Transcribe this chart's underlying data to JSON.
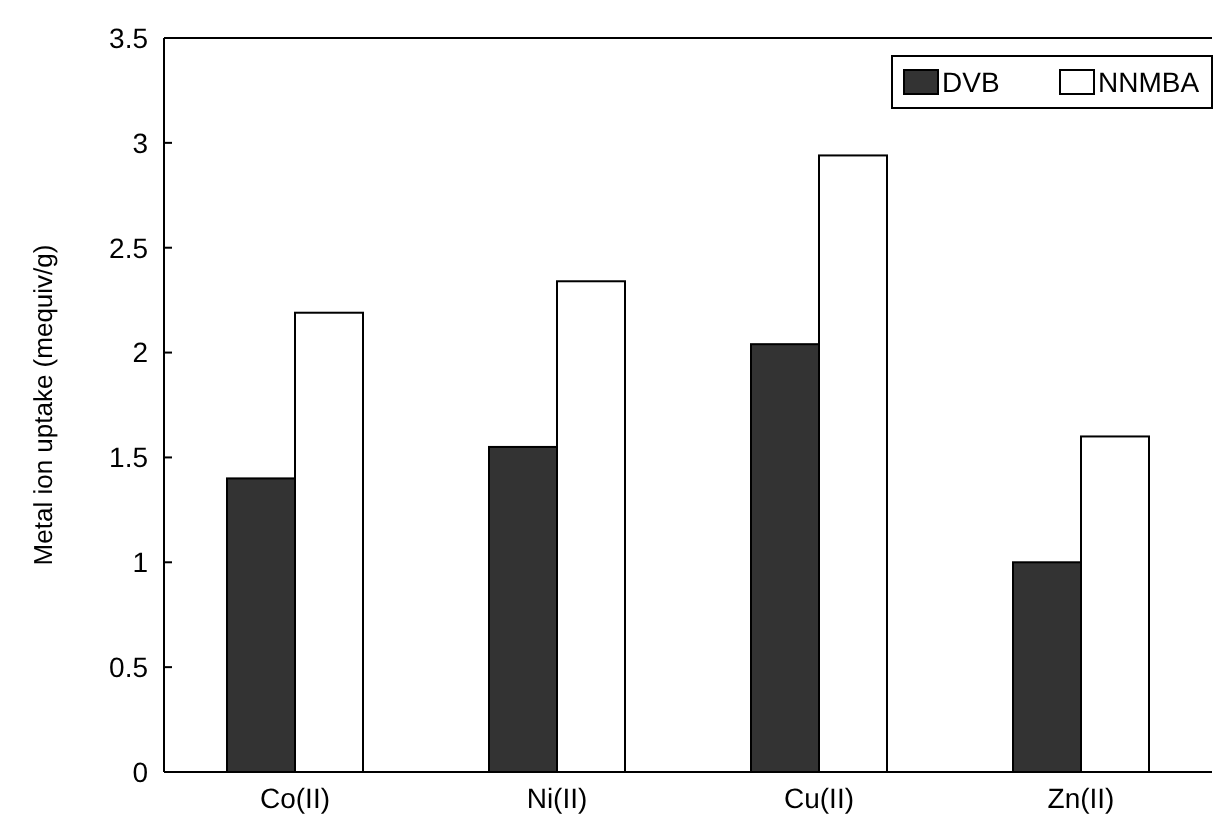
{
  "chart_data": {
    "type": "bar",
    "ylabel": "Metal  ion uptake (mequiv/g)",
    "categories": [
      "Co(II)",
      "Ni(II)",
      "Cu(II)",
      "Zn(II)"
    ],
    "series": [
      {
        "name": "DVB",
        "color": "#333333",
        "values": [
          1.4,
          1.55,
          2.04,
          1.0
        ]
      },
      {
        "name": "NNMBA",
        "color": "#ffffff",
        "values": [
          2.19,
          2.34,
          2.94,
          1.6
        ]
      }
    ],
    "ylim": [
      0,
      3.5
    ],
    "yticks": [
      0,
      0.5,
      1,
      1.5,
      2,
      2.5,
      3,
      3.5
    ],
    "grid": false,
    "legend": "top right"
  }
}
